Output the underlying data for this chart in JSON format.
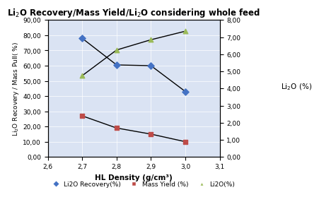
{
  "title": "Li$_2$O Recovery/Mass Yield/Li$_2$O considering whole feed",
  "x": [
    2.7,
    2.8,
    2.9,
    3.0
  ],
  "li2o_recovery": [
    78.0,
    60.5,
    60.0,
    43.0
  ],
  "mass_yield": [
    27.0,
    19.0,
    15.0,
    10.0
  ],
  "li2o_grade": [
    4.75,
    6.25,
    6.85,
    7.35
  ],
  "xlabel": "HL Density (g/cm³)",
  "ylabel_left": "Li$_2$O Recovery / Mass Pull( %)",
  "ylabel_right": "Li$_2$O (%)",
  "xlim": [
    2.6,
    3.1
  ],
  "ylim_left": [
    0,
    90
  ],
  "ylim_right": [
    0.0,
    8.0
  ],
  "yticks_left": [
    0.0,
    10.0,
    20.0,
    30.0,
    40.0,
    50.0,
    60.0,
    70.0,
    80.0,
    90.0
  ],
  "yticks_right": [
    0.0,
    1.0,
    2.0,
    3.0,
    4.0,
    5.0,
    6.0,
    7.0,
    8.0
  ],
  "xticks": [
    2.6,
    2.7,
    2.8,
    2.9,
    3.0,
    3.1
  ],
  "color_recovery": "#4472C4",
  "color_mass": "#BE4B48",
  "color_li2o": "#9BBB59",
  "legend_labels": [
    "Li2O Recovery(%)",
    "Mass Yield (%)",
    "Li2O(%)"
  ],
  "bg_color": "#DAE3F3",
  "line_color": "#000000"
}
